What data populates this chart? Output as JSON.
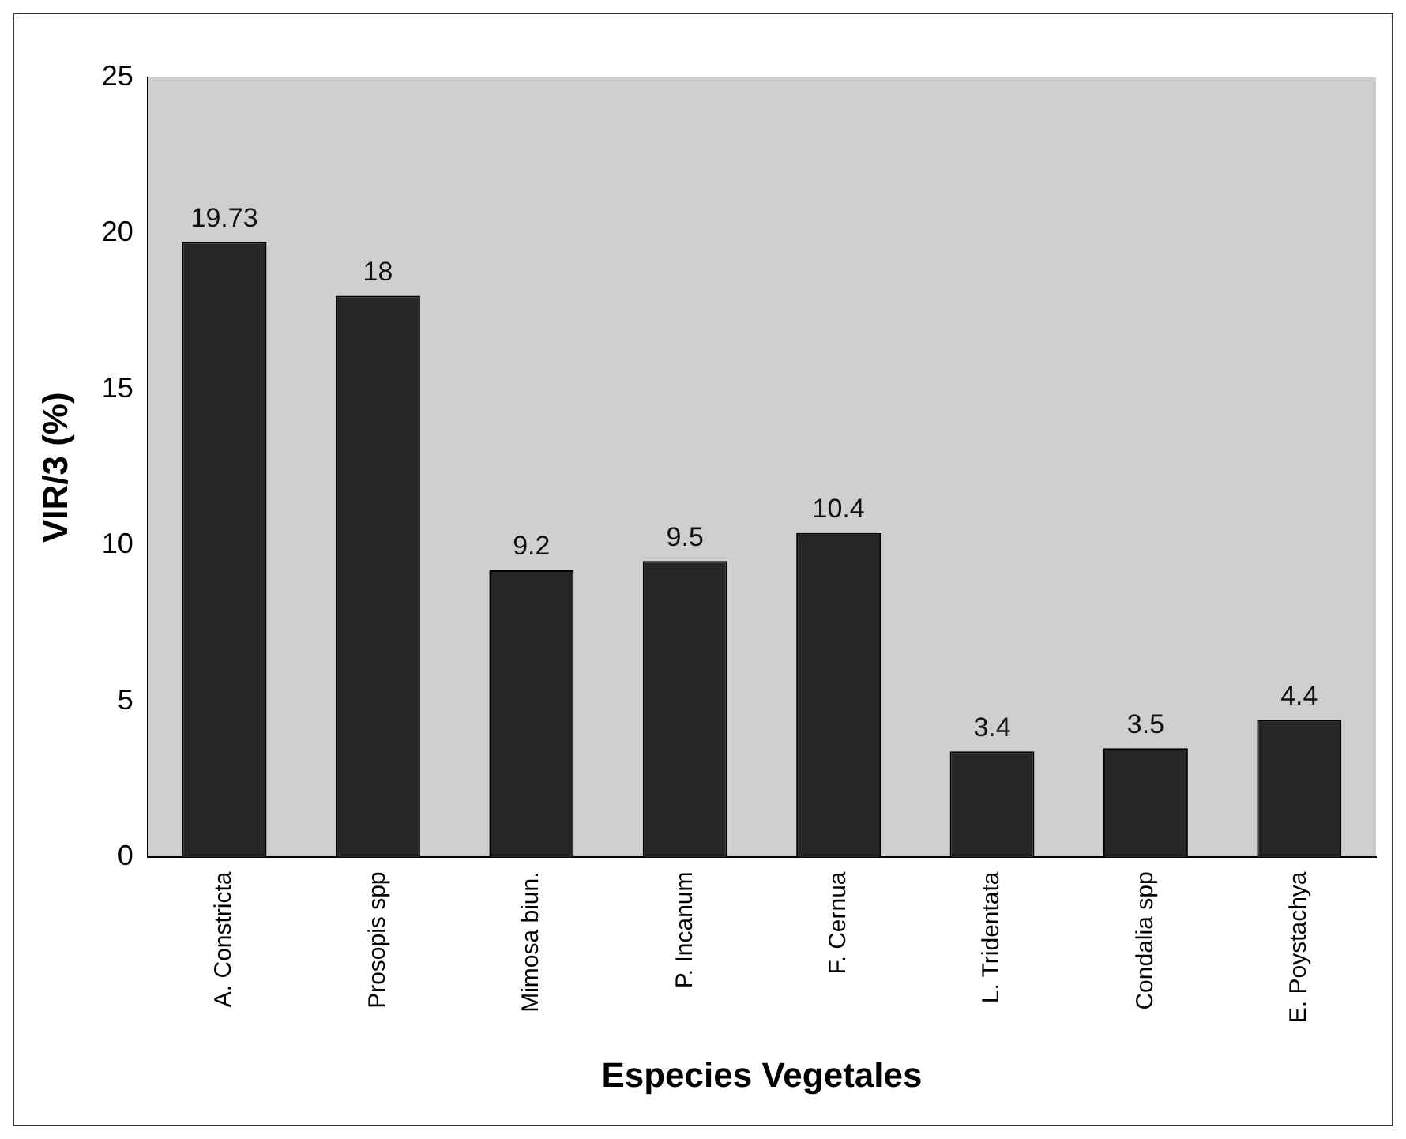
{
  "chart_data": {
    "type": "bar",
    "xlabel": "Especies Vegetales",
    "ylabel": "VIR/3 (%)",
    "categories": [
      "A. Constricta",
      "Prosopis spp",
      "Mimosa biun.",
      "P. Incanum",
      "F. Cernua",
      "L. Tridentata",
      "Condalia spp",
      "E. Poystachya"
    ],
    "values": [
      19.73,
      18,
      9.2,
      9.5,
      10.4,
      3.4,
      3.5,
      4.4
    ],
    "color": "#262626",
    "ylim": [
      0,
      25
    ],
    "yticks": [
      0,
      5,
      10,
      15,
      20,
      25
    ],
    "data_labels": true,
    "grid": false,
    "legend": false
  }
}
